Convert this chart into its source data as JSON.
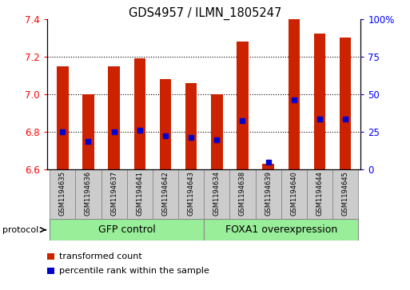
{
  "title": "GDS4957 / ILMN_1805247",
  "samples": [
    "GSM1194635",
    "GSM1194636",
    "GSM1194637",
    "GSM1194641",
    "GSM1194642",
    "GSM1194643",
    "GSM1194634",
    "GSM1194638",
    "GSM1194639",
    "GSM1194640",
    "GSM1194644",
    "GSM1194645"
  ],
  "bar_values": [
    7.15,
    7.0,
    7.15,
    7.19,
    7.08,
    7.06,
    7.0,
    7.28,
    6.63,
    7.4,
    7.32,
    7.3
  ],
  "blue_dot_values": [
    6.8,
    6.75,
    6.8,
    6.81,
    6.78,
    6.77,
    6.76,
    6.86,
    6.64,
    6.97,
    6.87,
    6.87
  ],
  "bar_bottom": 6.6,
  "ylim_left": [
    6.6,
    7.4
  ],
  "ylim_right": [
    0,
    100
  ],
  "yticks_left": [
    6.6,
    6.8,
    7.0,
    7.2,
    7.4
  ],
  "yticks_right": [
    0,
    25,
    50,
    75,
    100
  ],
  "ytick_labels_right": [
    "0",
    "25",
    "50",
    "75",
    "100%"
  ],
  "bar_color": "#cc2200",
  "dot_color": "#0000cc",
  "group1_label": "GFP control",
  "group2_label": "FOXA1 overexpression",
  "group1_count": 6,
  "group2_count": 6,
  "protocol_label": "protocol",
  "legend_bar_label": "transformed count",
  "legend_dot_label": "percentile rank within the sample",
  "group_bar_color": "#99ee99",
  "xtick_bg": "#cccccc",
  "bar_width": 0.45
}
